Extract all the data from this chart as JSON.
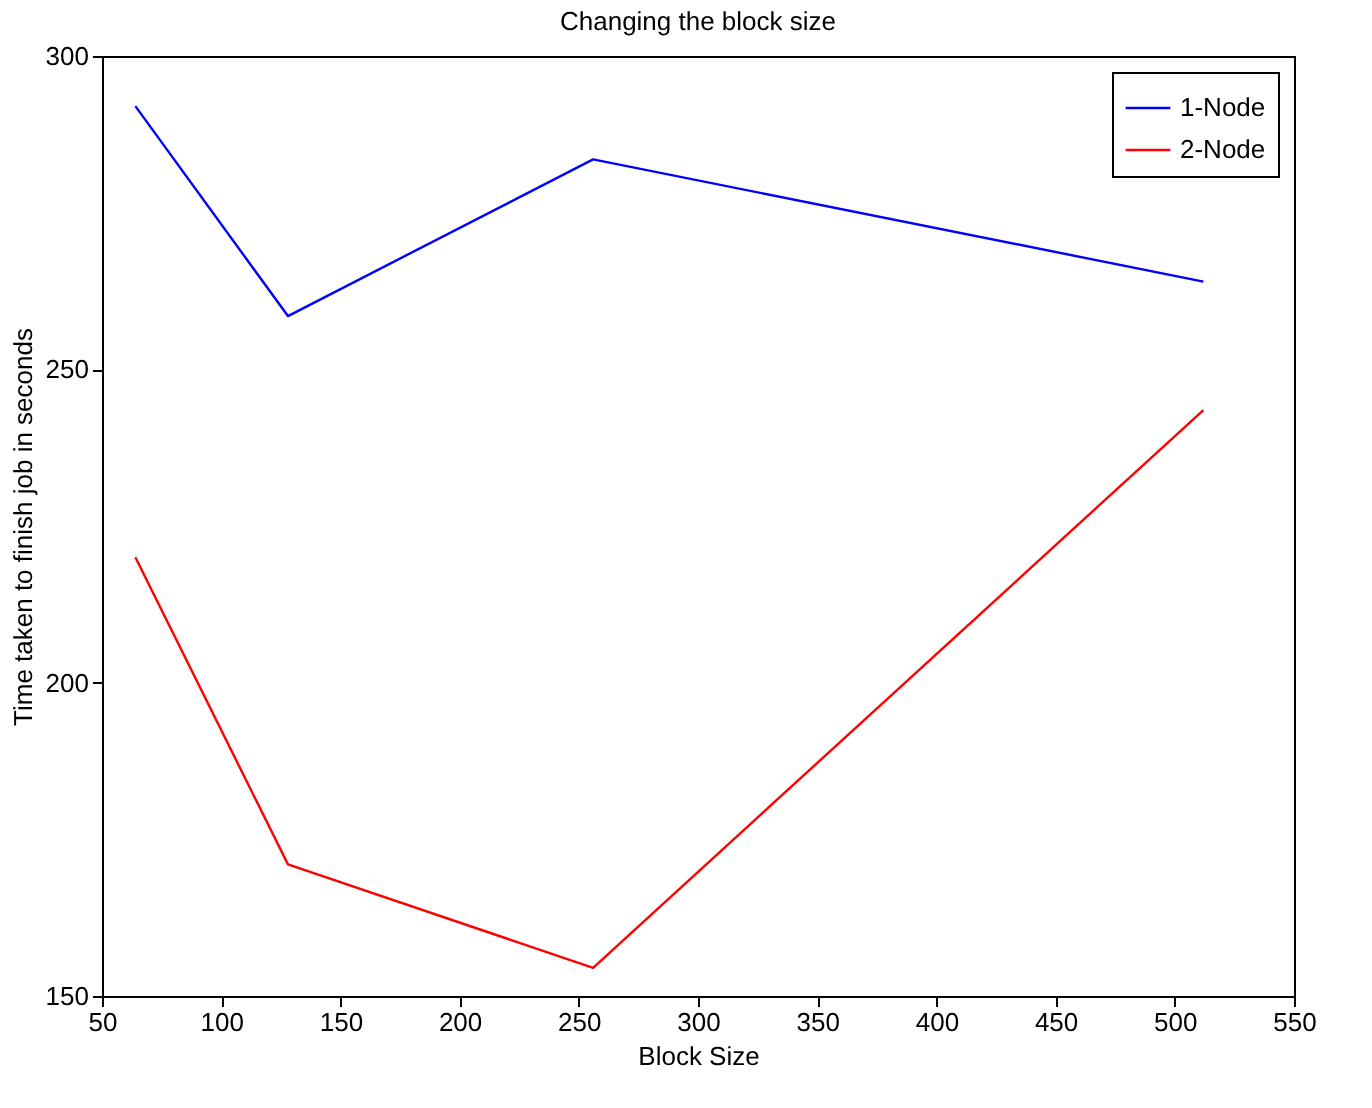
{
  "chart_data": {
    "type": "line",
    "title": "Changing the block size",
    "xlabel": "Block Size",
    "ylabel": "Time taken to finish job in seconds",
    "x": [
      64,
      128,
      256,
      512
    ],
    "series": [
      {
        "name": "1-Node",
        "color": "#0000ff",
        "values": [
          292,
          258.5,
          283.5,
          264
        ]
      },
      {
        "name": "2-Node",
        "color": "#ff0000",
        "values": [
          220,
          171,
          154.5,
          243.5
        ]
      }
    ],
    "xlim": [
      50,
      550
    ],
    "xticks": [
      50,
      100,
      150,
      200,
      250,
      300,
      350,
      400,
      450,
      500,
      550
    ],
    "ylim": [
      150,
      300
    ],
    "yticks": [
      150,
      200,
      250,
      300
    ],
    "grid": false,
    "legend": "top right",
    "marker": "none",
    "line_style": "solid"
  }
}
